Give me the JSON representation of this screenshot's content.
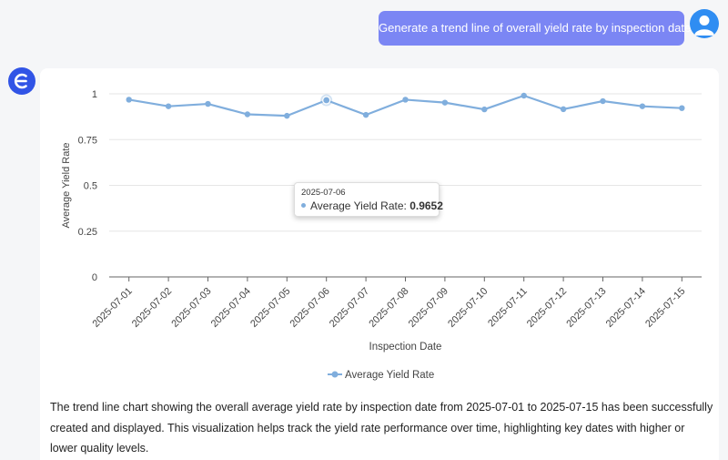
{
  "user_message": "Generate a trend line of overall yield rate by inspection date",
  "chart_data": {
    "type": "line",
    "x": [
      "2025-07-01",
      "2025-07-02",
      "2025-07-03",
      "2025-07-04",
      "2025-07-05",
      "2025-07-06",
      "2025-07-07",
      "2025-07-08",
      "2025-07-09",
      "2025-07-10",
      "2025-07-11",
      "2025-07-12",
      "2025-07-13",
      "2025-07-14",
      "2025-07-15"
    ],
    "series": [
      {
        "name": "Average Yield Rate",
        "values": [
          0.968,
          0.932,
          0.945,
          0.888,
          0.88,
          0.9652,
          0.885,
          0.968,
          0.952,
          0.915,
          0.99,
          0.916,
          0.96,
          0.932,
          0.922
        ]
      }
    ],
    "xlabel": "Inspection Date",
    "ylabel": "Average Yield Rate",
    "ylim": [
      0,
      1
    ],
    "yticks": [
      "0",
      "0.25",
      "0.5",
      "0.75",
      "1"
    ],
    "color": "#80aedd",
    "grid": true,
    "legend": "bottom",
    "tooltip": {
      "date": "2025-07-06",
      "label": "Average Yield Rate: ",
      "value": "0.9652"
    }
  },
  "summary": "The trend line chart showing the overall average yield rate by inspection date from 2025-07-01 to 2025-07-15 has been successfully created and displayed. This visualization helps track the yield rate performance over time, highlighting key dates with higher or lower quality levels."
}
